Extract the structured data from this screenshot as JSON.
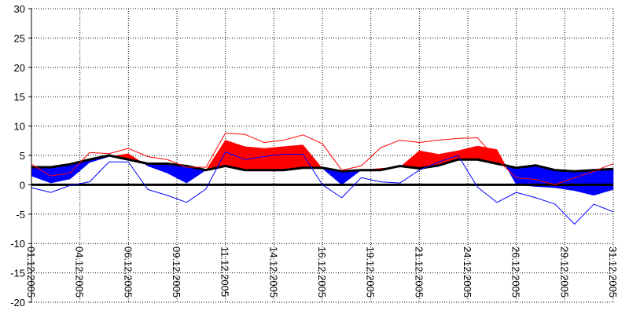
{
  "chart_data": {
    "type": "line",
    "x": [
      1,
      2,
      3,
      4,
      5,
      6,
      7,
      8,
      9,
      10,
      11,
      12,
      13,
      14,
      15,
      16,
      17,
      18,
      19,
      20,
      21,
      22,
      23,
      24,
      25,
      26,
      27,
      28,
      29,
      30,
      31
    ],
    "xlim": [
      1,
      31
    ],
    "xticks": [
      {
        "value": 1,
        "label": "01.12.2005"
      },
      {
        "value": 3.5,
        "label": "04.12.2005"
      },
      {
        "value": 6,
        "label": "06.12.2005"
      },
      {
        "value": 8.5,
        "label": "09.12.2005"
      },
      {
        "value": 11,
        "label": "11.12.2005"
      },
      {
        "value": 13.5,
        "label": "14.12.2005"
      },
      {
        "value": 16,
        "label": "16.12.2005"
      },
      {
        "value": 18.5,
        "label": "19.12.2005"
      },
      {
        "value": 21,
        "label": "21.12.2005"
      },
      {
        "value": 23.5,
        "label": "24.12.2005"
      },
      {
        "value": 26,
        "label": "26.12.2005"
      },
      {
        "value": 28.5,
        "label": "29.12.2005"
      },
      {
        "value": 31,
        "label": "31.12.2005"
      }
    ],
    "ylim": [
      -20,
      30
    ],
    "yticks": [
      -20,
      -15,
      -10,
      -5,
      0,
      5,
      10,
      15,
      20,
      25,
      30
    ],
    "grid": true,
    "zero_line": true,
    "series": [
      {
        "color": "#000000",
        "width": 3,
        "values": [
          3.0,
          3.0,
          3.5,
          4.3,
          5.0,
          4.3,
          3.6,
          3.6,
          3.2,
          2.5,
          3.2,
          2.5,
          2.5,
          2.5,
          2.9,
          2.9,
          2.3,
          2.5,
          2.5,
          3.2,
          2.8,
          3.3,
          4.3,
          4.3,
          3.6,
          2.9,
          3.3,
          2.5,
          2.3,
          2.5,
          2.7
        ]
      },
      {
        "fill_to": 0,
        "fill_above": "#ff0000",
        "fill_below": "#0000ff",
        "values": [
          1.5,
          0.3,
          1.0,
          3.8,
          4.8,
          5.3,
          3.2,
          2.0,
          0.3,
          2.5,
          7.6,
          6.5,
          6.2,
          6.5,
          6.8,
          2.8,
          0.0,
          2.5,
          2.8,
          3.0,
          5.8,
          5.2,
          5.8,
          6.6,
          6.0,
          0.0,
          -0.3,
          -0.5,
          -1.0,
          -1.8,
          -0.8
        ]
      },
      {
        "color": "#ff0000",
        "width": 1,
        "values": [
          3.5,
          1.5,
          2.0,
          5.5,
          5.3,
          6.2,
          4.8,
          4.3,
          3.0,
          3.0,
          8.8,
          8.6,
          7.2,
          7.6,
          8.5,
          7.0,
          2.5,
          3.2,
          6.3,
          7.6,
          7.2,
          7.6,
          7.9,
          8.0,
          4.3,
          1.2,
          0.9,
          0.0,
          1.2,
          2.3,
          3.6
        ]
      },
      {
        "color": "#0000ff",
        "width": 1,
        "values": [
          -0.5,
          -1.3,
          -0.1,
          0.5,
          3.9,
          3.9,
          -0.8,
          -1.8,
          -3.0,
          -0.7,
          5.6,
          4.3,
          4.8,
          5.2,
          5.2,
          0.0,
          -2.2,
          1.2,
          0.5,
          0.3,
          2.5,
          3.9,
          5.0,
          -0.4,
          -3.0,
          -1.3,
          -2.2,
          -3.3,
          -6.7,
          -3.3,
          -4.6
        ]
      }
    ]
  }
}
